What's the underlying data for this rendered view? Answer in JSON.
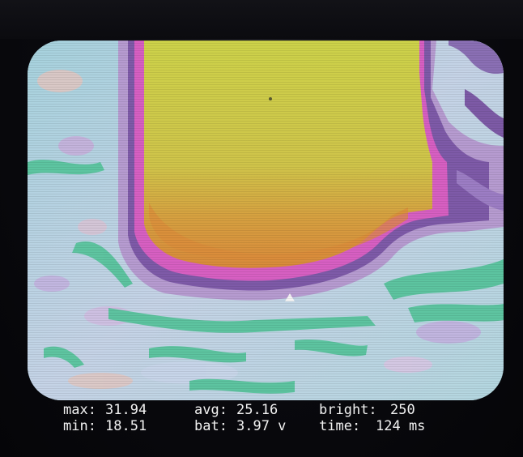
{
  "hud": {
    "max_label": "max:",
    "max_value": "31.94",
    "avg_label": "avg:",
    "avg_value": "25.16",
    "bright_label": "bright:",
    "bright_value": "250",
    "min_label": "min:",
    "min_value": "18.51",
    "bat_label": "bat:",
    "bat_value": "3.97 v",
    "time_label": "time:",
    "time_value": "124 ms"
  },
  "colors": {
    "cold": "#9fd0de",
    "cool": "#c9cfe6",
    "green": "#5cc6a0",
    "violet": "#b79ad0",
    "purple": "#7f59a6",
    "magenta": "#d65cc0",
    "orange": "#d68a38",
    "hot": "#c8cf48"
  },
  "icons": [
    "none"
  ]
}
